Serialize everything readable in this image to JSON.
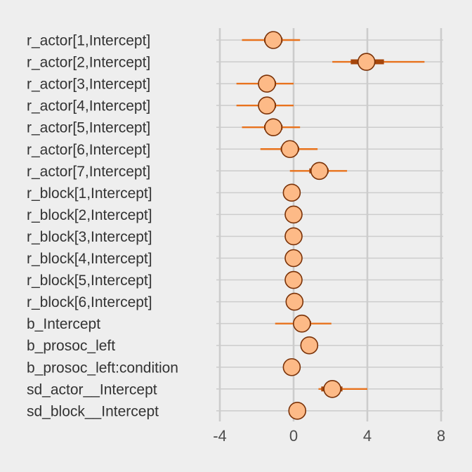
{
  "colors": {
    "background": "#eeeeee",
    "grid": "#cccccc",
    "interval_outer": "#e8721c",
    "interval_inner": "#a6460b",
    "point_fill": "#fdba87",
    "point_stroke": "#7a3208",
    "text": "#333333"
  },
  "chart_data": {
    "type": "interval",
    "title": "",
    "xlabel": "",
    "ylabel": "",
    "xlim": [
      -4,
      8
    ],
    "xticks": [
      -4,
      0,
      4,
      8
    ],
    "grid": true,
    "series": [
      {
        "label": "r_actor[1,Intercept]",
        "mean": -1.1,
        "inner": [
          -1.6,
          -0.6
        ],
        "outer": [
          -2.8,
          0.35
        ]
      },
      {
        "label": "r_actor[2,Intercept]",
        "mean": 3.95,
        "inner": [
          3.1,
          4.9
        ],
        "outer": [
          2.1,
          7.1
        ]
      },
      {
        "label": "r_actor[3,Intercept]",
        "mean": -1.45,
        "inner": [
          -1.9,
          -0.95
        ],
        "outer": [
          -3.1,
          0.0
        ]
      },
      {
        "label": "r_actor[4,Intercept]",
        "mean": -1.45,
        "inner": [
          -1.9,
          -0.95
        ],
        "outer": [
          -3.1,
          0.0
        ]
      },
      {
        "label": "r_actor[5,Intercept]",
        "mean": -1.1,
        "inner": [
          -1.6,
          -0.6
        ],
        "outer": [
          -2.8,
          0.35
        ]
      },
      {
        "label": "r_actor[6,Intercept]",
        "mean": -0.2,
        "inner": [
          -0.7,
          0.3
        ],
        "outer": [
          -1.8,
          1.3
        ]
      },
      {
        "label": "r_actor[7,Intercept]",
        "mean": 1.4,
        "inner": [
          0.85,
          1.9
        ],
        "outer": [
          -0.2,
          2.9
        ]
      },
      {
        "label": "r_block[1,Intercept]",
        "mean": -0.1,
        "inner": [
          -0.3,
          0.1
        ],
        "outer": [
          -0.3,
          0.1
        ]
      },
      {
        "label": "r_block[2,Intercept]",
        "mean": 0.0,
        "inner": [
          -0.3,
          0.3
        ],
        "outer": [
          -0.3,
          0.3
        ]
      },
      {
        "label": "r_block[3,Intercept]",
        "mean": 0.0,
        "inner": [
          -0.3,
          0.3
        ],
        "outer": [
          -0.3,
          0.3
        ]
      },
      {
        "label": "r_block[4,Intercept]",
        "mean": 0.0,
        "inner": [
          -0.3,
          0.3
        ],
        "outer": [
          -0.3,
          0.3
        ]
      },
      {
        "label": "r_block[5,Intercept]",
        "mean": 0.0,
        "inner": [
          -0.3,
          0.3
        ],
        "outer": [
          -0.3,
          0.3
        ]
      },
      {
        "label": "r_block[6,Intercept]",
        "mean": 0.05,
        "inner": [
          -0.25,
          0.35
        ],
        "outer": [
          -0.25,
          0.35
        ]
      },
      {
        "label": "b_Intercept",
        "mean": 0.45,
        "inner": [
          0.0,
          0.95
        ],
        "outer": [
          -1.0,
          2.05
        ]
      },
      {
        "label": "b_prosoc_left",
        "mean": 0.85,
        "inner": [
          0.6,
          1.1
        ],
        "outer": [
          0.6,
          1.1
        ]
      },
      {
        "label": "b_prosoc_left:condition",
        "mean": -0.1,
        "inner": [
          -0.4,
          0.2
        ],
        "outer": [
          -0.4,
          0.2
        ]
      },
      {
        "label": "sd_actor__Intercept",
        "mean": 2.1,
        "inner": [
          1.5,
          2.65
        ],
        "outer": [
          1.35,
          4.0
        ]
      },
      {
        "label": "sd_block__Intercept",
        "mean": 0.2,
        "inner": [
          0.2,
          0.2
        ],
        "outer": [
          0.2,
          0.2
        ]
      }
    ]
  }
}
